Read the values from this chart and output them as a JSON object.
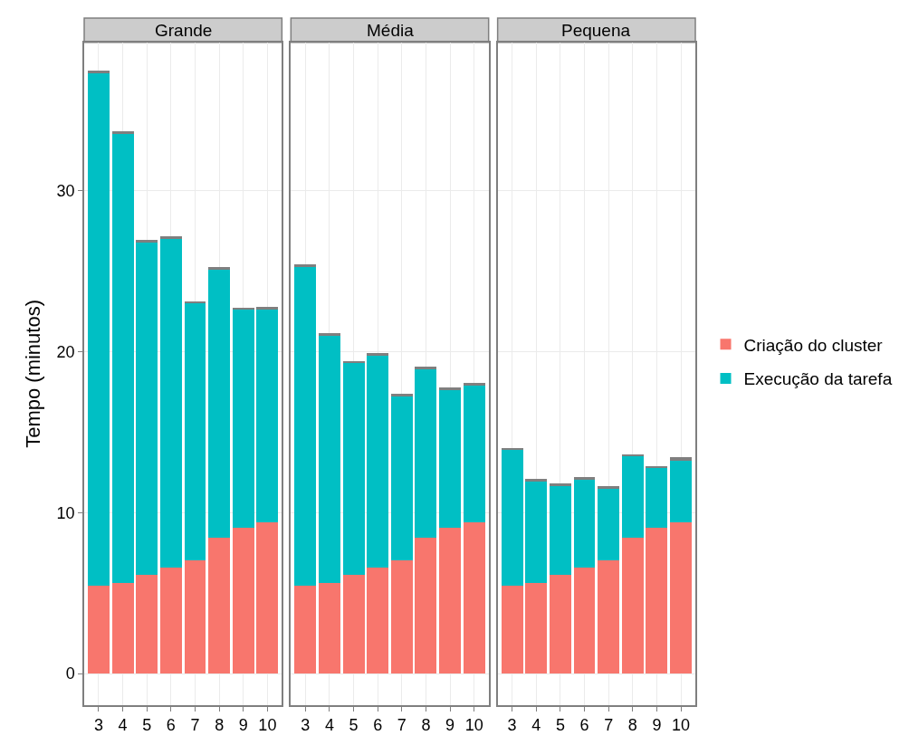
{
  "chart_data": [
    {
      "type": "bar",
      "title": "Grande",
      "ylabel": "Tempo (minutos)",
      "categories": [
        "3",
        "4",
        "5",
        "6",
        "7",
        "8",
        "9",
        "10"
      ],
      "stacked": true,
      "ylim": [
        -1.96,
        39.2
      ],
      "yticks": [
        0,
        10,
        20,
        30
      ],
      "grid": true,
      "legend": "right",
      "series": [
        {
          "name": "Criação do cluster",
          "color": "#f8766d",
          "values": [
            5.44,
            5.61,
            6.12,
            6.61,
            7.04,
            8.43,
            9.03,
            9.42
          ]
        },
        {
          "name": "Execução da tarefa",
          "color": "#00bfc4",
          "values": [
            31.88,
            27.91,
            20.71,
            20.43,
            15.99,
            16.71,
            13.56,
            13.21
          ]
        },
        {
          "color": "#7f7f7f",
          "values": [
            0.11,
            0.17,
            0.1,
            0.11,
            0.1,
            0.11,
            0.15,
            0.16
          ]
        }
      ]
    },
    {
      "type": "bar",
      "title": "Média",
      "categories": [
        "3",
        "4",
        "5",
        "6",
        "7",
        "8",
        "9",
        "10"
      ],
      "stacked": true,
      "ylim": [
        -1.96,
        39.2
      ],
      "yticks": [
        0,
        10,
        20,
        30
      ],
      "grid": true,
      "tick_labels": "x",
      "series": [
        {
          "color": "#f8766d",
          "values": [
            5.44,
            5.61,
            6.12,
            6.61,
            7.04,
            8.43,
            9.03,
            9.42
          ]
        },
        {
          "color": "#00bfc4",
          "values": [
            19.87,
            15.34,
            13.15,
            13.17,
            10.22,
            10.51,
            8.57,
            8.46
          ]
        },
        {
          "color": "#7f7f7f",
          "values": [
            0.11,
            0.17,
            0.12,
            0.11,
            0.11,
            0.11,
            0.17,
            0.16
          ]
        }
      ]
    },
    {
      "type": "bar",
      "title": "Pequena",
      "categories": [
        "3",
        "4",
        "5",
        "6",
        "7",
        "8",
        "9",
        "10"
      ],
      "stacked": true,
      "ylim": [
        -1.96,
        39.2
      ],
      "yticks": [
        0,
        10,
        20,
        30
      ],
      "grid": true,
      "tick_labels": "x",
      "series": [
        {
          "color": "#f8766d",
          "values": [
            5.44,
            5.61,
            6.12,
            6.61,
            7.04,
            8.43,
            9.03,
            9.42
          ]
        },
        {
          "color": "#00bfc4",
          "values": [
            8.47,
            6.29,
            5.56,
            5.46,
            4.49,
            5.11,
            3.72,
            3.82
          ]
        },
        {
          "color": "#7f7f7f",
          "values": [
            0.11,
            0.17,
            0.11,
            0.11,
            0.09,
            0.09,
            0.15,
            0.22
          ]
        }
      ]
    }
  ]
}
